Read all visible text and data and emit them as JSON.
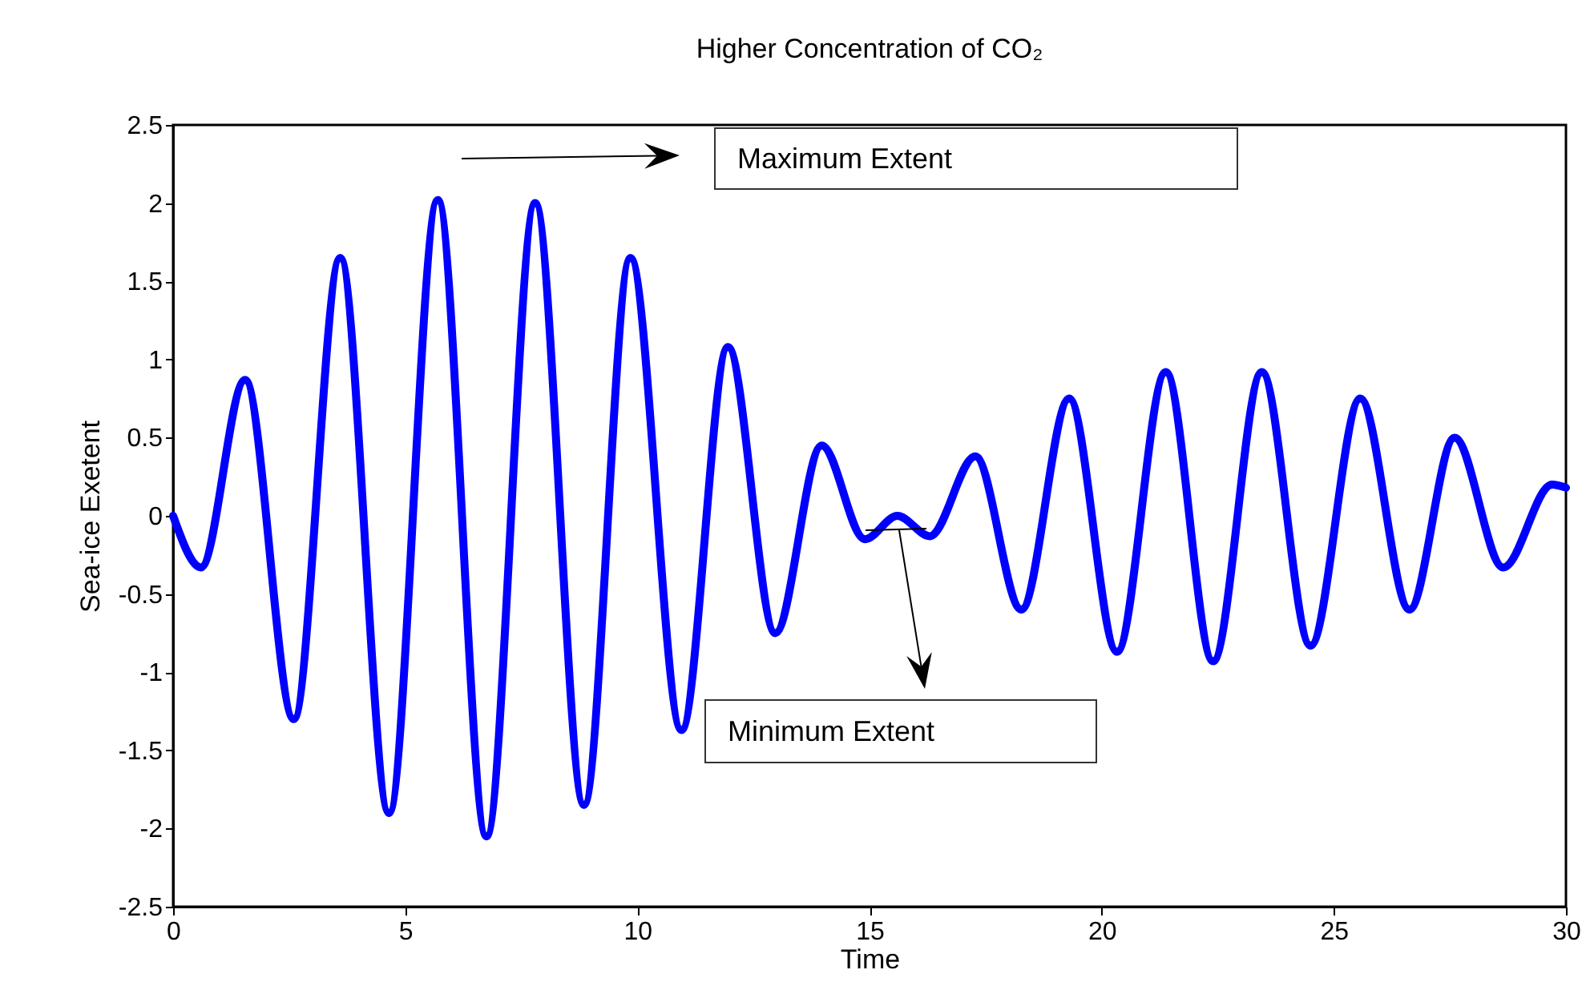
{
  "chart_data": {
    "type": "line",
    "title": "Higher Concentration of CO₂",
    "xlabel": "Time",
    "ylabel": "Sea-ice Exetent",
    "x": [
      0,
      0.6,
      1.55,
      2.6,
      3.6,
      4.65,
      5.7,
      6.75,
      7.8,
      8.85,
      9.85,
      10.95,
      11.95,
      12.97,
      13.97,
      14.9,
      15.6,
      16.3,
      17.28,
      18.27,
      19.3,
      20.33,
      21.38,
      22.4,
      23.45,
      24.5,
      25.57,
      26.63,
      27.6,
      28.65,
      29.7,
      30
    ],
    "series": [
      {
        "color": "#0000ff",
        "values": [
          0,
          -0.33,
          0.87,
          -1.3,
          1.65,
          -1.9,
          2.02,
          -2.05,
          2.0,
          -1.85,
          1.65,
          -1.37,
          1.08,
          -0.75,
          0.45,
          -0.15,
          0.0,
          -0.13,
          0.38,
          -0.6,
          0.75,
          -0.87,
          0.92,
          -0.93,
          0.92,
          -0.83,
          0.75,
          -0.6,
          0.5,
          -0.33,
          0.2,
          0.18
        ]
      }
    ],
    "xlim": [
      0,
      30
    ],
    "xticks": [
      0,
      5,
      10,
      15,
      20,
      25,
      30
    ],
    "ylim": [
      -2.5,
      2.5
    ],
    "yticks": [
      -2.5,
      -2,
      -1.5,
      -1,
      -0.5,
      0,
      0.5,
      1,
      1.5,
      2,
      2.5
    ],
    "grid": false,
    "marker": "none",
    "line_style": "solid",
    "annotations": [
      "Maximum Extent",
      "Minimum Extent"
    ]
  }
}
